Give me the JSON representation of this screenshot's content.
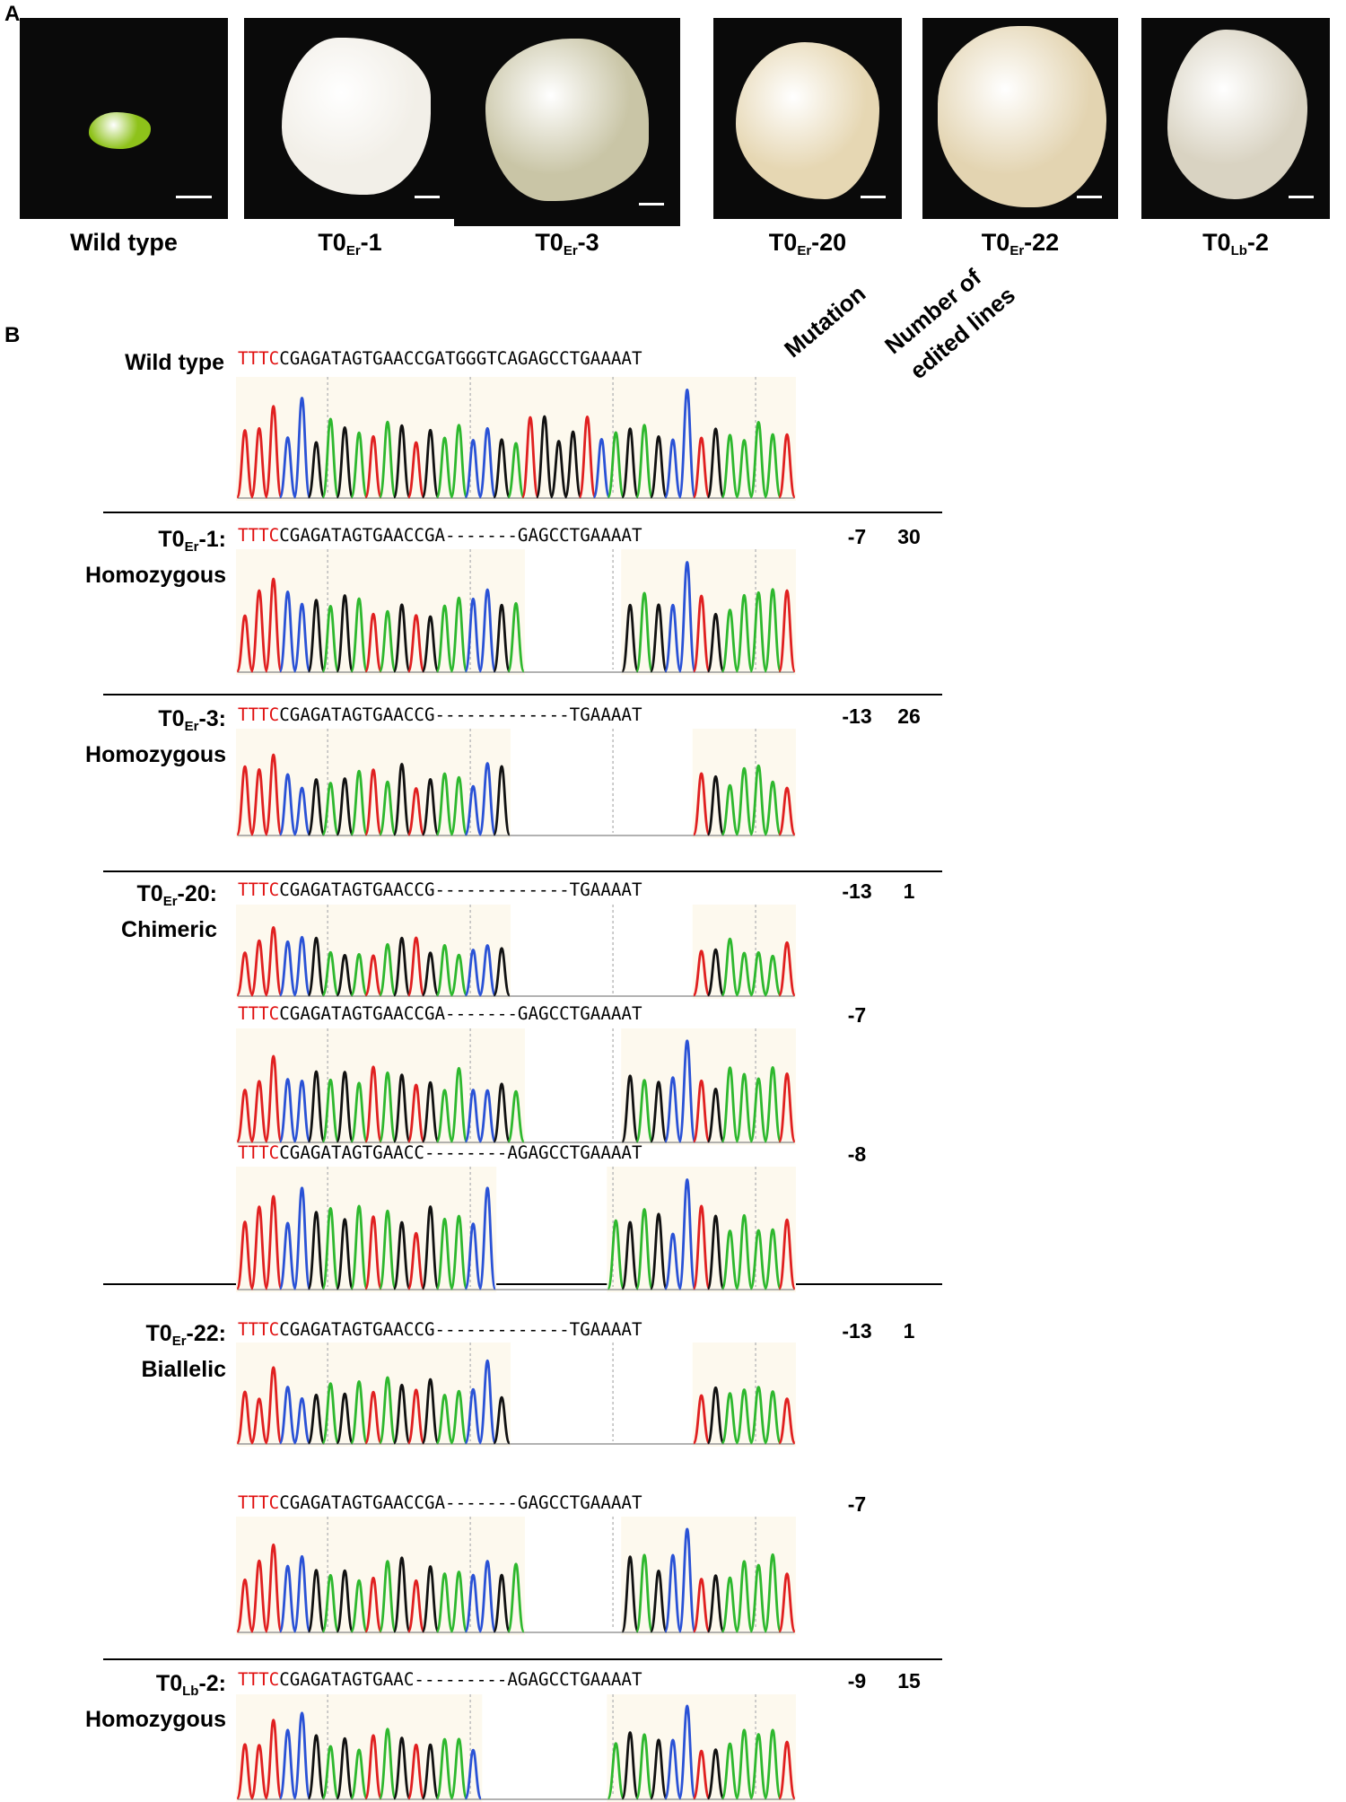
{
  "panels": {
    "a": "A",
    "b": "B"
  },
  "photos": [
    {
      "main": "Wild type",
      "sub": "",
      "suffix": "",
      "color": "#8ec21a"
    },
    {
      "main": "T0",
      "sub": "Er",
      "suffix": "-1",
      "color": "#f2efe8"
    },
    {
      "main": "T0",
      "sub": "Er",
      "suffix": "-3",
      "color": "#c9c5a6"
    },
    {
      "main": "T0",
      "sub": "Er",
      "suffix": "-20",
      "color": "#e6d7b3"
    },
    {
      "main": "T0",
      "sub": "Er",
      "suffix": "-22",
      "color": "#e3d4b1"
    },
    {
      "main": "T0",
      "sub": "Lb",
      "suffix": "-2",
      "color": "#d9d3c2"
    }
  ],
  "headers": {
    "mutation": "Mutation",
    "edited_line1": "Number of",
    "edited_line2": "edited lines"
  },
  "colors": {
    "A": "#2eb82e",
    "C": "#2a52d6",
    "G": "#111111",
    "T": "#e02020",
    "pam": "#e01010",
    "bg": "#fdf9ee"
  },
  "groups": [
    {
      "id": "wt",
      "label_main": "Wild type",
      "label_sub": "",
      "label_suffix": "",
      "genotype": "",
      "count": ""
    },
    {
      "id": "er1",
      "label_main": "T0",
      "label_sub": "Er",
      "label_suffix": "-1:",
      "genotype": "Homozygous",
      "count": "30"
    },
    {
      "id": "er3",
      "label_main": "T0",
      "label_sub": "Er",
      "label_suffix": "-3:",
      "genotype": "Homozygous",
      "count": "26"
    },
    {
      "id": "er20",
      "label_main": "T0",
      "label_sub": "Er",
      "label_suffix": "-20:",
      "genotype": "Chimeric",
      "count": "1"
    },
    {
      "id": "er22",
      "label_main": "T0",
      "label_sub": "Er",
      "label_suffix": "-22:",
      "genotype": "Biallelic",
      "count": "1"
    },
    {
      "id": "lb2",
      "label_main": "T0",
      "label_sub": "Lb",
      "label_suffix": "-2:",
      "genotype": "Homozygous",
      "count": "15"
    }
  ],
  "traces": [
    {
      "group": "wt",
      "pam": "TTTC",
      "rest": "CGAGATAGTGAACCGATGGGTCAGAGCCTGAAAAT",
      "mutation": ""
    },
    {
      "group": "er1",
      "pam": "TTTC",
      "rest": "CGAGATAGTGAACCGA-------GAGCCTGAAAAT",
      "mutation": "-7"
    },
    {
      "group": "er3",
      "pam": "TTTC",
      "rest": "CGAGATAGTGAACCG-------------TGAAAAT",
      "mutation": "-13"
    },
    {
      "group": "er20",
      "pam": "TTTC",
      "rest": "CGAGATAGTGAACCG-------------TGAAAAT",
      "mutation": "-13"
    },
    {
      "group": "er20",
      "pam": "TTTC",
      "rest": "CGAGATAGTGAACCGA-------GAGCCTGAAAAT",
      "mutation": "-7"
    },
    {
      "group": "er20",
      "pam": "TTTC",
      "rest": "CGAGATAGTGAACC--------AGAGCCTGAAAAT",
      "mutation": "-8"
    },
    {
      "group": "er22",
      "pam": "TTTC",
      "rest": "CGAGATAGTGAACCG-------------TGAAAAT",
      "mutation": "-13"
    },
    {
      "group": "er22",
      "pam": "TTTC",
      "rest": "CGAGATAGTGAACCGA-------GAGCCTGAAAAT",
      "mutation": "-7"
    },
    {
      "group": "lb2",
      "pam": "TTTC",
      "rest": "CGAGATAGTGAAC---------AGAGCCTGAAAAT",
      "mutation": "-9"
    }
  ]
}
